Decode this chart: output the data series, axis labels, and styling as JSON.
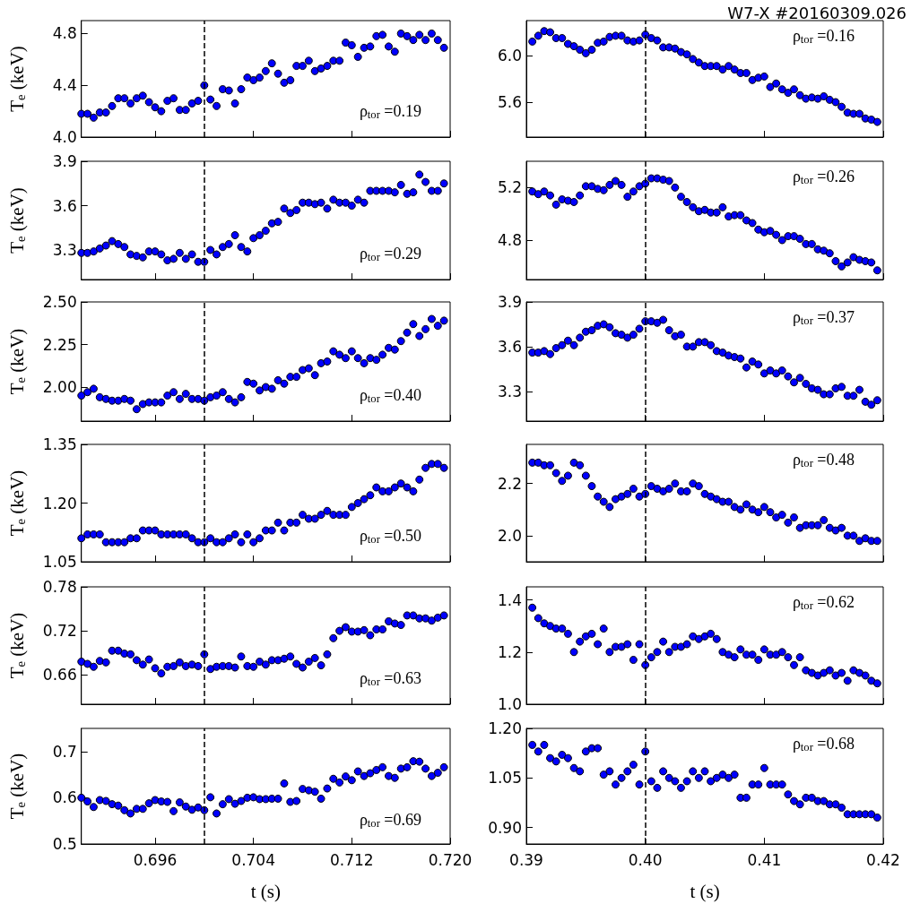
{
  "chart_data": [
    {
      "type": "scatter",
      "ylabel": "T$_{e}$ (keV)",
      "annotations": [
        "ρ$_{tor}$ =0.19"
      ],
      "tick_labels": "y",
      "marker": "circle",
      "grid": false,
      "color": "#0000ff",
      "xlim": [
        0.69,
        0.72
      ],
      "xticks": [
        {
          "value": 0.696,
          "label": null
        },
        {
          "value": 0.704,
          "label": null
        },
        {
          "value": 0.712,
          "label": null
        },
        {
          "value": 0.72,
          "label": null
        }
      ],
      "ylim": [
        4.0,
        4.9
      ],
      "yticks": [
        {
          "value": 4,
          "label": "4.0"
        },
        4.4,
        4.8
      ],
      "ref_lines": [
        {
          "axis": "x",
          "value": 0.7,
          "color": "#000000",
          "line_style": "dashed"
        }
      ],
      "x": [
        0.69,
        0.6905,
        0.691,
        0.6915,
        0.692,
        0.6925,
        0.693,
        0.6935,
        0.694,
        0.6945,
        0.695,
        0.6955,
        0.696,
        0.6965,
        0.697,
        0.6975,
        0.698,
        0.6985,
        0.699,
        0.6995,
        0.7,
        0.7005,
        0.701,
        0.7015,
        0.702,
        0.7025,
        0.703,
        0.7035,
        0.704,
        0.7045,
        0.705,
        0.7055,
        0.706,
        0.7065,
        0.707,
        0.7075,
        0.708,
        0.7085,
        0.709,
        0.7095,
        0.71,
        0.7105,
        0.711,
        0.7115,
        0.712,
        0.7125,
        0.713,
        0.7135,
        0.714,
        0.7145,
        0.715,
        0.7155,
        0.716,
        0.7165,
        0.717,
        0.7175,
        0.718,
        0.7185,
        0.719,
        0.7195
      ],
      "values": [
        4.18,
        4.18,
        4.15,
        4.19,
        4.19,
        4.24,
        4.3,
        4.3,
        4.26,
        4.3,
        4.32,
        4.27,
        4.23,
        4.2,
        4.28,
        4.3,
        4.21,
        4.21,
        4.26,
        4.28,
        4.4,
        4.29,
        4.24,
        4.37,
        4.36,
        4.26,
        4.37,
        4.46,
        4.44,
        4.46,
        4.51,
        4.57,
        4.49,
        4.42,
        4.44,
        4.55,
        4.55,
        4.59,
        4.51,
        4.53,
        4.55,
        4.59,
        4.59,
        4.73,
        4.71,
        4.62,
        4.69,
        4.7,
        4.78,
        4.79,
        4.7,
        4.66,
        4.8,
        4.78,
        4.75,
        4.79,
        4.75,
        4.8,
        4.75,
        4.69
      ]
    },
    {
      "type": "scatter",
      "title": "W7-X #20160309.026",
      "annotations": [
        "ρ$_{tor}$ =0.16"
      ],
      "tick_labels": "y",
      "marker": "circle",
      "grid": false,
      "color": "#0000ff",
      "xlim": [
        0.39,
        0.42
      ],
      "xticks": [
        {
          "value": 0.39,
          "label": null
        },
        {
          "value": 0.4,
          "label": null
        },
        {
          "value": 0.41,
          "label": null
        },
        {
          "value": 0.42,
          "label": null
        }
      ],
      "ylim": [
        5.3,
        6.3
      ],
      "yticks": [
        5.6,
        {
          "value": 6,
          "label": "6.0"
        }
      ],
      "ref_lines": [
        {
          "axis": "x",
          "value": 0.4,
          "color": "#000000",
          "line_style": "dashed"
        }
      ],
      "x": [
        0.3905,
        0.391,
        0.3915,
        0.392,
        0.3925,
        0.393,
        0.3935,
        0.394,
        0.3945,
        0.395,
        0.3955,
        0.396,
        0.3965,
        0.397,
        0.3975,
        0.398,
        0.3985,
        0.399,
        0.3995,
        0.4,
        0.4005,
        0.401,
        0.4015,
        0.402,
        0.4025,
        0.403,
        0.4035,
        0.404,
        0.4045,
        0.405,
        0.4055,
        0.406,
        0.4065,
        0.407,
        0.4075,
        0.408,
        0.4085,
        0.409,
        0.4095,
        0.41,
        0.4105,
        0.411,
        0.4115,
        0.412,
        0.4125,
        0.413,
        0.4135,
        0.414,
        0.4145,
        0.415,
        0.4155,
        0.416,
        0.4165,
        0.417,
        0.4175,
        0.418,
        0.4185,
        0.419,
        0.4195
      ],
      "values": [
        6.12,
        6.17,
        6.21,
        6.2,
        6.15,
        6.15,
        6.1,
        6.08,
        6.05,
        6.02,
        6.05,
        6.11,
        6.12,
        6.16,
        6.17,
        6.17,
        6.13,
        6.12,
        6.13,
        6.18,
        6.15,
        6.13,
        6.07,
        6.07,
        6.06,
        6.03,
        6.01,
        5.97,
        5.94,
        5.91,
        5.91,
        5.91,
        5.88,
        5.91,
        5.88,
        5.85,
        5.85,
        5.79,
        5.81,
        5.82,
        5.73,
        5.76,
        5.71,
        5.68,
        5.71,
        5.66,
        5.63,
        5.64,
        5.63,
        5.65,
        5.62,
        5.6,
        5.56,
        5.51,
        5.5,
        5.5,
        5.46,
        5.45,
        5.43
      ]
    },
    {
      "type": "scatter",
      "ylabel": "T$_{e}$ (keV)",
      "annotations": [
        "ρ$_{tor}$ =0.29"
      ],
      "tick_labels": "y",
      "marker": "circle",
      "grid": false,
      "color": "#0000ff",
      "xlim": [
        0.69,
        0.72
      ],
      "xticks": [
        {
          "value": 0.696,
          "label": null
        },
        {
          "value": 0.704,
          "label": null
        },
        {
          "value": 0.712,
          "label": null
        },
        {
          "value": 0.72,
          "label": null
        }
      ],
      "ylim": [
        3.1,
        3.9
      ],
      "yticks": [
        3.3,
        3.6,
        3.9
      ],
      "ref_lines": [
        {
          "axis": "x",
          "value": 0.7,
          "color": "#000000",
          "line_style": "dashed"
        }
      ],
      "x": [
        0.69,
        0.6905,
        0.691,
        0.6915,
        0.692,
        0.6925,
        0.693,
        0.6935,
        0.694,
        0.6945,
        0.695,
        0.6955,
        0.696,
        0.6965,
        0.697,
        0.6975,
        0.698,
        0.6985,
        0.699,
        0.6995,
        0.7,
        0.7005,
        0.701,
        0.7015,
        0.702,
        0.7025,
        0.703,
        0.7035,
        0.704,
        0.7045,
        0.705,
        0.7055,
        0.706,
        0.7065,
        0.707,
        0.7075,
        0.708,
        0.7085,
        0.709,
        0.7095,
        0.71,
        0.7105,
        0.711,
        0.7115,
        0.712,
        0.7125,
        0.713,
        0.7135,
        0.714,
        0.7145,
        0.715,
        0.7155,
        0.716,
        0.7165,
        0.717,
        0.7175,
        0.718,
        0.7185,
        0.719,
        0.7195
      ],
      "values": [
        3.28,
        3.28,
        3.29,
        3.31,
        3.33,
        3.36,
        3.34,
        3.32,
        3.27,
        3.26,
        3.25,
        3.29,
        3.29,
        3.27,
        3.23,
        3.24,
        3.28,
        3.24,
        3.27,
        3.22,
        3.22,
        3.3,
        3.27,
        3.32,
        3.34,
        3.4,
        3.32,
        3.29,
        3.38,
        3.4,
        3.43,
        3.48,
        3.49,
        3.58,
        3.55,
        3.57,
        3.62,
        3.62,
        3.61,
        3.62,
        3.58,
        3.64,
        3.62,
        3.62,
        3.6,
        3.64,
        3.62,
        3.7,
        3.7,
        3.7,
        3.7,
        3.69,
        3.74,
        3.68,
        3.69,
        3.81,
        3.76,
        3.7,
        3.7,
        3.75
      ]
    },
    {
      "type": "scatter",
      "annotations": [
        "ρ$_{tor}$ =0.26"
      ],
      "tick_labels": "y",
      "marker": "circle",
      "grid": false,
      "color": "#0000ff",
      "xlim": [
        0.39,
        0.42
      ],
      "xticks": [
        {
          "value": 0.39,
          "label": null
        },
        {
          "value": 0.4,
          "label": null
        },
        {
          "value": 0.41,
          "label": null
        },
        {
          "value": 0.42,
          "label": null
        }
      ],
      "ylim": [
        4.5,
        5.4
      ],
      "yticks": [
        4.8,
        5.2
      ],
      "ref_lines": [
        {
          "axis": "x",
          "value": 0.4,
          "color": "#000000",
          "line_style": "dashed"
        }
      ],
      "x": [
        0.3905,
        0.391,
        0.3915,
        0.392,
        0.3925,
        0.393,
        0.3935,
        0.394,
        0.3945,
        0.395,
        0.3955,
        0.396,
        0.3965,
        0.397,
        0.3975,
        0.398,
        0.3985,
        0.399,
        0.3995,
        0.4,
        0.4005,
        0.401,
        0.4015,
        0.402,
        0.4025,
        0.403,
        0.4035,
        0.404,
        0.4045,
        0.405,
        0.4055,
        0.406,
        0.4065,
        0.407,
        0.4075,
        0.408,
        0.4085,
        0.409,
        0.4095,
        0.41,
        0.4105,
        0.411,
        0.4115,
        0.412,
        0.4125,
        0.413,
        0.4135,
        0.414,
        0.4145,
        0.415,
        0.4155,
        0.416,
        0.4165,
        0.417,
        0.4175,
        0.418,
        0.4185,
        0.419,
        0.4195
      ],
      "values": [
        5.17,
        5.15,
        5.17,
        5.14,
        5.07,
        5.11,
        5.1,
        5.09,
        5.14,
        5.21,
        5.21,
        5.19,
        5.18,
        5.22,
        5.25,
        5.22,
        5.13,
        5.17,
        5.21,
        5.23,
        5.27,
        5.27,
        5.26,
        5.25,
        5.2,
        5.13,
        5.09,
        5.05,
        5.02,
        5.03,
        5.01,
        5.01,
        5.05,
        4.98,
        4.99,
        4.99,
        4.95,
        4.93,
        4.88,
        4.86,
        4.87,
        4.84,
        4.8,
        4.83,
        4.83,
        4.81,
        4.77,
        4.77,
        4.73,
        4.72,
        4.7,
        4.64,
        4.6,
        4.63,
        4.67,
        4.65,
        4.64,
        4.63,
        4.57
      ]
    },
    {
      "type": "scatter",
      "ylabel": "T$_{e}$ (keV)",
      "annotations": [
        "ρ$_{tor}$ =0.40"
      ],
      "tick_labels": "y",
      "marker": "circle",
      "grid": false,
      "color": "#0000ff",
      "xlim": [
        0.69,
        0.72
      ],
      "xticks": [
        {
          "value": 0.696,
          "label": null
        },
        {
          "value": 0.704,
          "label": null
        },
        {
          "value": 0.712,
          "label": null
        },
        {
          "value": 0.72,
          "label": null
        }
      ],
      "ylim": [
        1.8,
        2.5
      ],
      "yticks": [
        {
          "value": 2,
          "label": "2.00"
        },
        2.25,
        {
          "value": 2.5,
          "label": "2.50"
        }
      ],
      "ref_lines": [
        {
          "axis": "x",
          "value": 0.7,
          "color": "#000000",
          "line_style": "dashed"
        }
      ],
      "x": [
        0.69,
        0.6905,
        0.691,
        0.6915,
        0.692,
        0.6925,
        0.693,
        0.6935,
        0.694,
        0.6945,
        0.695,
        0.6955,
        0.696,
        0.6965,
        0.697,
        0.6975,
        0.698,
        0.6985,
        0.699,
        0.6995,
        0.7,
        0.7005,
        0.701,
        0.7015,
        0.702,
        0.7025,
        0.703,
        0.7035,
        0.704,
        0.7045,
        0.705,
        0.7055,
        0.706,
        0.7065,
        0.707,
        0.7075,
        0.708,
        0.7085,
        0.709,
        0.7095,
        0.71,
        0.7105,
        0.711,
        0.7115,
        0.712,
        0.7125,
        0.713,
        0.7135,
        0.714,
        0.7145,
        0.715,
        0.7155,
        0.716,
        0.7165,
        0.717,
        0.7175,
        0.718,
        0.7185,
        0.719,
        0.7195
      ],
      "values": [
        1.95,
        1.97,
        1.99,
        1.94,
        1.93,
        1.92,
        1.92,
        1.93,
        1.92,
        1.87,
        1.9,
        1.91,
        1.91,
        1.91,
        1.95,
        1.97,
        1.93,
        1.96,
        1.93,
        1.93,
        1.92,
        1.94,
        1.95,
        1.97,
        1.93,
        1.91,
        1.94,
        2.03,
        2.02,
        1.98,
        2.0,
        1.99,
        2.04,
        2.02,
        2.06,
        2.06,
        2.1,
        2.11,
        2.07,
        2.14,
        2.15,
        2.21,
        2.19,
        2.17,
        2.21,
        2.17,
        2.14,
        2.17,
        2.16,
        2.19,
        2.23,
        2.22,
        2.27,
        2.32,
        2.37,
        2.3,
        2.34,
        2.4,
        2.36,
        2.39
      ]
    },
    {
      "type": "scatter",
      "annotations": [
        "ρ$_{tor}$ =0.37"
      ],
      "tick_labels": "y",
      "marker": "circle",
      "grid": false,
      "color": "#0000ff",
      "xlim": [
        0.39,
        0.42
      ],
      "xticks": [
        {
          "value": 0.39,
          "label": null
        },
        {
          "value": 0.4,
          "label": null
        },
        {
          "value": 0.41,
          "label": null
        },
        {
          "value": 0.42,
          "label": null
        }
      ],
      "ylim": [
        3.1,
        3.9
      ],
      "yticks": [
        3.3,
        3.6,
        3.9
      ],
      "ref_lines": [
        {
          "axis": "x",
          "value": 0.4,
          "color": "#000000",
          "line_style": "dashed"
        }
      ],
      "x": [
        0.3905,
        0.391,
        0.3915,
        0.392,
        0.3925,
        0.393,
        0.3935,
        0.394,
        0.3945,
        0.395,
        0.3955,
        0.396,
        0.3965,
        0.397,
        0.3975,
        0.398,
        0.3985,
        0.399,
        0.3995,
        0.4,
        0.4005,
        0.401,
        0.4015,
        0.402,
        0.4025,
        0.403,
        0.4035,
        0.404,
        0.4045,
        0.405,
        0.4055,
        0.406,
        0.4065,
        0.407,
        0.4075,
        0.408,
        0.4085,
        0.409,
        0.4095,
        0.41,
        0.4105,
        0.411,
        0.4115,
        0.412,
        0.4125,
        0.413,
        0.4135,
        0.414,
        0.4145,
        0.415,
        0.4155,
        0.416,
        0.4165,
        0.417,
        0.4175,
        0.418,
        0.4185,
        0.419,
        0.4195
      ],
      "values": [
        3.56,
        3.56,
        3.57,
        3.55,
        3.59,
        3.61,
        3.64,
        3.61,
        3.66,
        3.7,
        3.71,
        3.74,
        3.75,
        3.73,
        3.69,
        3.68,
        3.66,
        3.68,
        3.72,
        3.77,
        3.77,
        3.76,
        3.78,
        3.71,
        3.67,
        3.68,
        3.6,
        3.6,
        3.63,
        3.63,
        3.61,
        3.57,
        3.56,
        3.54,
        3.53,
        3.52,
        3.46,
        3.5,
        3.48,
        3.42,
        3.44,
        3.42,
        3.44,
        3.4,
        3.36,
        3.39,
        3.35,
        3.32,
        3.31,
        3.28,
        3.28,
        3.32,
        3.33,
        3.27,
        3.27,
        3.31,
        3.23,
        3.21,
        3.24
      ]
    },
    {
      "type": "scatter",
      "ylabel": "T$_{e}$ (keV)",
      "annotations": [
        "ρ$_{tor}$ =0.50"
      ],
      "tick_labels": "y",
      "marker": "circle",
      "grid": false,
      "color": "#0000ff",
      "xlim": [
        0.69,
        0.72
      ],
      "xticks": [
        {
          "value": 0.696,
          "label": null
        },
        {
          "value": 0.704,
          "label": null
        },
        {
          "value": 0.712,
          "label": null
        },
        {
          "value": 0.72,
          "label": null
        }
      ],
      "ylim": [
        1.05,
        1.35
      ],
      "yticks": [
        1.05,
        {
          "value": 1.2,
          "label": "1.20"
        },
        1.35
      ],
      "ref_lines": [
        {
          "axis": "x",
          "value": 0.7,
          "color": "#000000",
          "line_style": "dashed"
        }
      ],
      "x": [
        0.69,
        0.6905,
        0.691,
        0.6915,
        0.692,
        0.6925,
        0.693,
        0.6935,
        0.694,
        0.6945,
        0.695,
        0.6955,
        0.696,
        0.6965,
        0.697,
        0.6975,
        0.698,
        0.6985,
        0.699,
        0.6995,
        0.7,
        0.7005,
        0.701,
        0.7015,
        0.702,
        0.7025,
        0.703,
        0.7035,
        0.704,
        0.7045,
        0.705,
        0.7055,
        0.706,
        0.7065,
        0.707,
        0.7075,
        0.708,
        0.7085,
        0.709,
        0.7095,
        0.71,
        0.7105,
        0.711,
        0.7115,
        0.712,
        0.7125,
        0.713,
        0.7135,
        0.714,
        0.7145,
        0.715,
        0.7155,
        0.716,
        0.7165,
        0.717,
        0.7175,
        0.718,
        0.7185,
        0.719,
        0.7195
      ],
      "values": [
        1.11,
        1.12,
        1.12,
        1.12,
        1.1,
        1.1,
        1.1,
        1.1,
        1.11,
        1.11,
        1.13,
        1.13,
        1.13,
        1.12,
        1.12,
        1.12,
        1.12,
        1.12,
        1.11,
        1.1,
        1.1,
        1.11,
        1.1,
        1.1,
        1.11,
        1.12,
        1.1,
        1.12,
        1.1,
        1.11,
        1.13,
        1.13,
        1.15,
        1.13,
        1.15,
        1.15,
        1.17,
        1.16,
        1.16,
        1.17,
        1.18,
        1.17,
        1.17,
        1.17,
        1.19,
        1.2,
        1.21,
        1.22,
        1.24,
        1.23,
        1.23,
        1.24,
        1.25,
        1.24,
        1.23,
        1.26,
        1.29,
        1.3,
        1.3,
        1.29
      ]
    },
    {
      "type": "scatter",
      "annotations": [
        "ρ$_{tor}$ =0.48"
      ],
      "tick_labels": "y",
      "marker": "circle",
      "grid": false,
      "color": "#0000ff",
      "xlim": [
        0.39,
        0.42
      ],
      "xticks": [
        {
          "value": 0.39,
          "label": null
        },
        {
          "value": 0.4,
          "label": null
        },
        {
          "value": 0.41,
          "label": null
        },
        {
          "value": 0.42,
          "label": null
        }
      ],
      "ylim": [
        1.9,
        2.35
      ],
      "yticks": [
        {
          "value": 2,
          "label": "2.0"
        },
        2.2
      ],
      "ref_lines": [
        {
          "axis": "x",
          "value": 0.4,
          "color": "#000000",
          "line_style": "dashed"
        }
      ],
      "x": [
        0.3905,
        0.391,
        0.3915,
        0.392,
        0.3925,
        0.393,
        0.3935,
        0.394,
        0.3945,
        0.395,
        0.3955,
        0.396,
        0.3965,
        0.397,
        0.3975,
        0.398,
        0.3985,
        0.399,
        0.3995,
        0.4,
        0.4005,
        0.401,
        0.4015,
        0.402,
        0.4025,
        0.403,
        0.4035,
        0.404,
        0.4045,
        0.405,
        0.4055,
        0.406,
        0.4065,
        0.407,
        0.4075,
        0.408,
        0.4085,
        0.409,
        0.4095,
        0.41,
        0.4105,
        0.411,
        0.4115,
        0.412,
        0.4125,
        0.413,
        0.4135,
        0.414,
        0.4145,
        0.415,
        0.4155,
        0.416,
        0.4165,
        0.417,
        0.4175,
        0.418,
        0.4185,
        0.419,
        0.4195
      ],
      "values": [
        2.28,
        2.28,
        2.27,
        2.27,
        2.24,
        2.21,
        2.23,
        2.28,
        2.27,
        2.23,
        2.19,
        2.15,
        2.13,
        2.11,
        2.14,
        2.15,
        2.16,
        2.18,
        2.15,
        2.16,
        2.19,
        2.18,
        2.17,
        2.18,
        2.2,
        2.17,
        2.17,
        2.2,
        2.19,
        2.16,
        2.15,
        2.14,
        2.13,
        2.13,
        2.11,
        2.1,
        2.12,
        2.1,
        2.09,
        2.11,
        2.09,
        2.07,
        2.08,
        2.05,
        2.07,
        2.03,
        2.04,
        2.04,
        2.04,
        2.06,
        2.03,
        2.02,
        2.03,
        2.0,
        2.0,
        1.98,
        1.99,
        1.98,
        1.98
      ]
    },
    {
      "type": "scatter",
      "ylabel": "T$_{e}$ (keV)",
      "annotations": [
        "ρ$_{tor}$ =0.63"
      ],
      "tick_labels": "y",
      "marker": "circle",
      "grid": false,
      "color": "#0000ff",
      "xlim": [
        0.69,
        0.72
      ],
      "xticks": [
        {
          "value": 0.696,
          "label": null
        },
        {
          "value": 0.704,
          "label": null
        },
        {
          "value": 0.712,
          "label": null
        },
        {
          "value": 0.72,
          "label": null
        }
      ],
      "ylim": [
        0.62,
        0.78
      ],
      "yticks": [
        0.66,
        0.72,
        0.78
      ],
      "ref_lines": [
        {
          "axis": "x",
          "value": 0.7,
          "color": "#000000",
          "line_style": "dashed"
        }
      ],
      "x": [
        0.69,
        0.6905,
        0.691,
        0.6915,
        0.692,
        0.6925,
        0.693,
        0.6935,
        0.694,
        0.6945,
        0.695,
        0.6955,
        0.696,
        0.6965,
        0.697,
        0.6975,
        0.698,
        0.6985,
        0.699,
        0.6995,
        0.7,
        0.7005,
        0.701,
        0.7015,
        0.702,
        0.7025,
        0.703,
        0.7035,
        0.704,
        0.7045,
        0.705,
        0.7055,
        0.706,
        0.7065,
        0.707,
        0.7075,
        0.708,
        0.7085,
        0.709,
        0.7095,
        0.71,
        0.7105,
        0.711,
        0.7115,
        0.712,
        0.7125,
        0.713,
        0.7135,
        0.714,
        0.7145,
        0.715,
        0.7155,
        0.716,
        0.7165,
        0.717,
        0.7175,
        0.718,
        0.7185,
        0.719,
        0.7195
      ],
      "values": [
        0.678,
        0.675,
        0.671,
        0.679,
        0.677,
        0.693,
        0.693,
        0.689,
        0.688,
        0.68,
        0.674,
        0.681,
        0.669,
        0.662,
        0.671,
        0.672,
        0.677,
        0.672,
        0.674,
        0.672,
        0.688,
        0.668,
        0.671,
        0.672,
        0.672,
        0.67,
        0.685,
        0.672,
        0.671,
        0.678,
        0.674,
        0.68,
        0.68,
        0.682,
        0.685,
        0.675,
        0.67,
        0.678,
        0.683,
        0.673,
        0.688,
        0.71,
        0.72,
        0.725,
        0.719,
        0.719,
        0.721,
        0.714,
        0.722,
        0.722,
        0.733,
        0.73,
        0.728,
        0.741,
        0.741,
        0.737,
        0.737,
        0.734,
        0.738,
        0.741
      ]
    },
    {
      "type": "scatter",
      "annotations": [
        "ρ$_{tor}$ =0.62"
      ],
      "tick_labels": "y",
      "marker": "circle",
      "grid": false,
      "color": "#0000ff",
      "xlim": [
        0.39,
        0.42
      ],
      "xticks": [
        {
          "value": 0.39,
          "label": null
        },
        {
          "value": 0.4,
          "label": null
        },
        {
          "value": 0.41,
          "label": null
        },
        {
          "value": 0.42,
          "label": null
        }
      ],
      "ylim": [
        1.0,
        1.45
      ],
      "yticks": [
        {
          "value": 1,
          "label": "1.0"
        },
        1.2,
        1.4
      ],
      "ref_lines": [
        {
          "axis": "x",
          "value": 0.4,
          "color": "#000000",
          "line_style": "dashed"
        }
      ],
      "x": [
        0.3905,
        0.391,
        0.3915,
        0.392,
        0.3925,
        0.393,
        0.3935,
        0.394,
        0.3945,
        0.395,
        0.3955,
        0.396,
        0.3965,
        0.397,
        0.3975,
        0.398,
        0.3985,
        0.399,
        0.3995,
        0.4,
        0.4005,
        0.401,
        0.4015,
        0.402,
        0.4025,
        0.403,
        0.4035,
        0.404,
        0.4045,
        0.405,
        0.4055,
        0.406,
        0.4065,
        0.407,
        0.4075,
        0.408,
        0.4085,
        0.409,
        0.4095,
        0.41,
        0.4105,
        0.411,
        0.4115,
        0.412,
        0.4125,
        0.413,
        0.4135,
        0.414,
        0.4145,
        0.415,
        0.4155,
        0.416,
        0.4165,
        0.417,
        0.4175,
        0.418,
        0.4185,
        0.419,
        0.4195
      ],
      "values": [
        1.37,
        1.33,
        1.31,
        1.3,
        1.29,
        1.29,
        1.27,
        1.2,
        1.24,
        1.26,
        1.27,
        1.23,
        1.29,
        1.2,
        1.22,
        1.22,
        1.23,
        1.17,
        1.23,
        1.15,
        1.18,
        1.2,
        1.24,
        1.2,
        1.22,
        1.22,
        1.23,
        1.26,
        1.25,
        1.26,
        1.27,
        1.25,
        1.2,
        1.19,
        1.18,
        1.21,
        1.19,
        1.19,
        1.17,
        1.21,
        1.19,
        1.19,
        1.2,
        1.18,
        1.15,
        1.18,
        1.13,
        1.12,
        1.11,
        1.12,
        1.13,
        1.11,
        1.12,
        1.09,
        1.13,
        1.12,
        1.11,
        1.09,
        1.08
      ]
    },
    {
      "type": "scatter",
      "ylabel": "T$_{e}$ (keV)",
      "xlabel": "t (s)",
      "annotations": [
        "ρ$_{tor}$ =0.69"
      ],
      "marker": "circle",
      "grid": false,
      "color": "#0000ff",
      "xlim": [
        0.69,
        0.72
      ],
      "xticks": [
        0.696,
        0.704,
        0.712,
        {
          "value": 0.72,
          "label": "0.720"
        }
      ],
      "ylim": [
        0.5,
        0.75
      ],
      "yticks": [
        0.5,
        0.6,
        0.7
      ],
      "ref_lines": [
        {
          "axis": "x",
          "value": 0.7,
          "color": "#000000",
          "line_style": "dashed"
        }
      ],
      "x": [
        0.69,
        0.6905,
        0.691,
        0.6915,
        0.692,
        0.6925,
        0.693,
        0.6935,
        0.694,
        0.6945,
        0.695,
        0.6955,
        0.696,
        0.6965,
        0.697,
        0.6975,
        0.698,
        0.6985,
        0.699,
        0.6995,
        0.7,
        0.7005,
        0.701,
        0.7015,
        0.702,
        0.7025,
        0.703,
        0.7035,
        0.704,
        0.7045,
        0.705,
        0.7055,
        0.706,
        0.7065,
        0.707,
        0.7075,
        0.708,
        0.7085,
        0.709,
        0.7095,
        0.71,
        0.7105,
        0.711,
        0.7115,
        0.712,
        0.7125,
        0.713,
        0.7135,
        0.714,
        0.7145,
        0.715,
        0.7155,
        0.716,
        0.7165,
        0.717,
        0.7175,
        0.718,
        0.7185,
        0.719,
        0.7195
      ],
      "values": [
        0.6,
        0.592,
        0.58,
        0.595,
        0.593,
        0.586,
        0.583,
        0.573,
        0.566,
        0.576,
        0.576,
        0.588,
        0.595,
        0.592,
        0.591,
        0.571,
        0.59,
        0.581,
        0.574,
        0.579,
        0.573,
        0.601,
        0.566,
        0.586,
        0.597,
        0.587,
        0.593,
        0.6,
        0.601,
        0.597,
        0.597,
        0.598,
        0.598,
        0.631,
        0.591,
        0.593,
        0.619,
        0.616,
        0.613,
        0.598,
        0.62,
        0.641,
        0.633,
        0.646,
        0.638,
        0.657,
        0.647,
        0.653,
        0.66,
        0.666,
        0.647,
        0.643,
        0.663,
        0.666,
        0.679,
        0.678,
        0.663,
        0.647,
        0.654,
        0.666
      ]
    },
    {
      "type": "scatter",
      "xlabel": "t (s)",
      "annotations": [
        "ρ$_{tor}$ =0.68"
      ],
      "marker": "circle",
      "grid": false,
      "color": "#0000ff",
      "xlim": [
        0.39,
        0.42
      ],
      "xticks": [
        0.39,
        {
          "value": 0.4,
          "label": "0.40"
        },
        0.41,
        0.42
      ],
      "ylim": [
        0.85,
        1.2
      ],
      "yticks": [
        {
          "value": 0.9,
          "label": "0.90"
        },
        1.05,
        {
          "value": 1.2,
          "label": "1.20"
        }
      ],
      "ref_lines": [
        {
          "axis": "x",
          "value": 0.4,
          "color": "#000000",
          "line_style": "dashed"
        }
      ],
      "x": [
        0.3905,
        0.391,
        0.3915,
        0.392,
        0.3925,
        0.393,
        0.3935,
        0.394,
        0.3945,
        0.395,
        0.3955,
        0.396,
        0.3965,
        0.397,
        0.3975,
        0.398,
        0.3985,
        0.399,
        0.3995,
        0.4,
        0.4005,
        0.401,
        0.4015,
        0.402,
        0.4025,
        0.403,
        0.4035,
        0.404,
        0.4045,
        0.405,
        0.4055,
        0.406,
        0.4065,
        0.407,
        0.4075,
        0.408,
        0.4085,
        0.409,
        0.4095,
        0.41,
        0.4105,
        0.411,
        0.4115,
        0.412,
        0.4125,
        0.413,
        0.4135,
        0.414,
        0.4145,
        0.415,
        0.4155,
        0.416,
        0.4165,
        0.417,
        0.4175,
        0.418,
        0.4185,
        0.419,
        0.4195
      ],
      "values": [
        1.15,
        1.13,
        1.15,
        1.11,
        1.1,
        1.12,
        1.11,
        1.08,
        1.07,
        1.13,
        1.14,
        1.14,
        1.06,
        1.07,
        1.03,
        1.05,
        1.07,
        1.09,
        1.03,
        1.13,
        1.04,
        1.02,
        1.07,
        1.05,
        1.04,
        1.02,
        1.04,
        1.07,
        1.05,
        1.07,
        1.04,
        1.05,
        1.06,
        1.05,
        1.06,
        0.99,
        0.99,
        1.03,
        1.03,
        1.08,
        1.03,
        1.03,
        1.03,
        1.0,
        0.98,
        0.97,
        0.99,
        0.99,
        0.98,
        0.98,
        0.97,
        0.97,
        0.96,
        0.94,
        0.94,
        0.94,
        0.94,
        0.94,
        0.93
      ]
    }
  ]
}
